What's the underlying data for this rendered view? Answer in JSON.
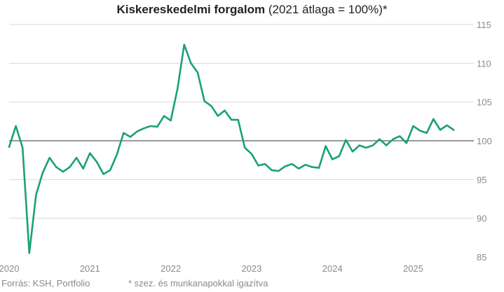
{
  "title_bold": "Kiskereskedelmi forgalom",
  "title_rest": "(2021 átlaga = 100%)*",
  "footer_source": "Forrás: KSH, Portfolio",
  "footer_note": "* szez. és munkanapokkal igazítva",
  "colors": {
    "line": "#1aa07a",
    "gridline": "#d9d9d9",
    "reference_line": "#333333",
    "text": "#8a8a8a"
  },
  "chart_data": {
    "type": "line",
    "title": "Kiskereskedelmi forgalom (2021 átlaga = 100%)*",
    "ylim": [
      85,
      115
    ],
    "y_ticks": [
      85,
      90,
      95,
      100,
      105,
      110,
      115
    ],
    "x_ticks": [
      "2020",
      "2021",
      "2022",
      "2023",
      "2024",
      "2025"
    ],
    "reference_line": 100,
    "grid": true,
    "x": [
      "2020-01",
      "2020-02",
      "2020-03",
      "2020-04",
      "2020-05",
      "2020-06",
      "2020-07",
      "2020-08",
      "2020-09",
      "2020-10",
      "2020-11",
      "2020-12",
      "2021-01",
      "2021-02",
      "2021-03",
      "2021-04",
      "2021-05",
      "2021-06",
      "2021-07",
      "2021-08",
      "2021-09",
      "2021-10",
      "2021-11",
      "2021-12",
      "2022-01",
      "2022-02",
      "2022-03",
      "2022-04",
      "2022-05",
      "2022-06",
      "2022-07",
      "2022-08",
      "2022-09",
      "2022-10",
      "2022-11",
      "2022-12",
      "2023-01",
      "2023-02",
      "2023-03",
      "2023-04",
      "2023-05",
      "2023-06",
      "2023-07",
      "2023-08",
      "2023-09",
      "2023-10",
      "2023-11",
      "2023-12",
      "2024-01",
      "2024-02",
      "2024-03",
      "2024-04",
      "2024-05",
      "2024-06",
      "2024-07",
      "2024-08",
      "2024-09",
      "2024-10",
      "2024-11",
      "2024-12",
      "2025-01",
      "2025-02",
      "2025-03",
      "2025-04",
      "2025-05",
      "2025-06",
      "2025-07"
    ],
    "series": [
      {
        "values": [
          99.2,
          101.9,
          99.1,
          85.5,
          93.0,
          95.9,
          97.8,
          96.6,
          96.0,
          96.6,
          97.8,
          96.4,
          98.4,
          97.3,
          95.7,
          96.2,
          98.2,
          101.0,
          100.5,
          101.2,
          101.6,
          101.9,
          101.8,
          103.2,
          102.6,
          106.7,
          112.4,
          110.0,
          108.8,
          105.1,
          104.5,
          103.2,
          103.9,
          102.7,
          102.7,
          99.1,
          98.3,
          96.8,
          97.0,
          96.2,
          96.1,
          96.7,
          97.0,
          96.4,
          96.9,
          96.6,
          96.5,
          99.3,
          97.6,
          98.0,
          100.1,
          98.6,
          99.4,
          99.1,
          99.4,
          100.2,
          99.4,
          100.2,
          100.6,
          99.7,
          101.9,
          101.3,
          101.0,
          102.8,
          101.4,
          102.0,
          101.4
        ]
      }
    ]
  }
}
